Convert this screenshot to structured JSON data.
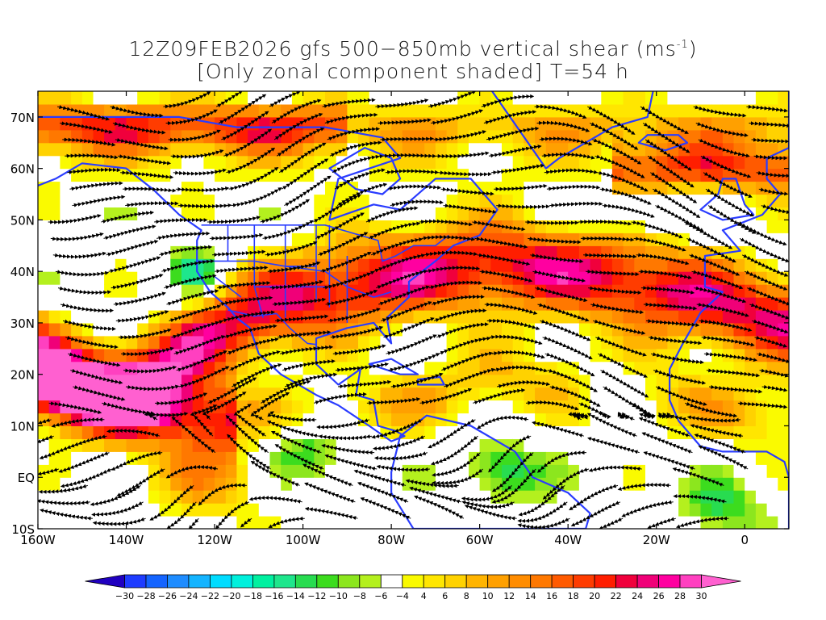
{
  "title": {
    "line1_prefix": "12Z09FEB2026 gfs 500−850mb vertical shear (ms",
    "line1_sup": "-1",
    "line1_suffix": ")",
    "line2": "[Only zonal component shaded] T=54 h"
  },
  "map": {
    "lon_range": [
      -160,
      10
    ],
    "lat_range": [
      -10,
      75
    ],
    "lat_labels": [
      "70N",
      "60N",
      "50N",
      "40N",
      "30N",
      "20N",
      "10N",
      "EQ",
      "10S"
    ],
    "lat_values": [
      70,
      60,
      50,
      40,
      30,
      20,
      10,
      0,
      -10
    ],
    "lon_labels": [
      "160W",
      "140W",
      "120W",
      "100W",
      "80W",
      "60W",
      "40W",
      "20W",
      "0"
    ],
    "lon_values": [
      -160,
      -140,
      -120,
      -100,
      -80,
      -60,
      -40,
      -20,
      0
    ],
    "coastline_color": "#2a3cff",
    "streamline_color": "#000000"
  },
  "colorbar": {
    "labels": [
      "-30",
      "-28",
      "-26",
      "-24",
      "-22",
      "-20",
      "-18",
      "-16",
      "-14",
      "-12",
      "-10",
      "-8",
      "-6",
      "-4",
      "4",
      "6",
      "8",
      "10",
      "12",
      "14",
      "16",
      "18",
      "20",
      "22",
      "24",
      "26",
      "28",
      "30"
    ],
    "colors": [
      "#2000c0",
      "#1e3cff",
      "#1464ff",
      "#1e8cff",
      "#14b4ff",
      "#00dcff",
      "#00f0dc",
      "#00f0a0",
      "#1ee68c",
      "#28dc50",
      "#3cdc1e",
      "#8ce61e",
      "#b4f01e",
      "#ffffff",
      "#fafa00",
      "#ffe600",
      "#ffd200",
      "#ffb400",
      "#ffa000",
      "#ff8c00",
      "#ff7800",
      "#ff5a00",
      "#ff3c00",
      "#ff1e00",
      "#f0003c",
      "#f00078",
      "#ff00a0",
      "#ff40c0",
      "#ff60d0"
    ]
  }
}
